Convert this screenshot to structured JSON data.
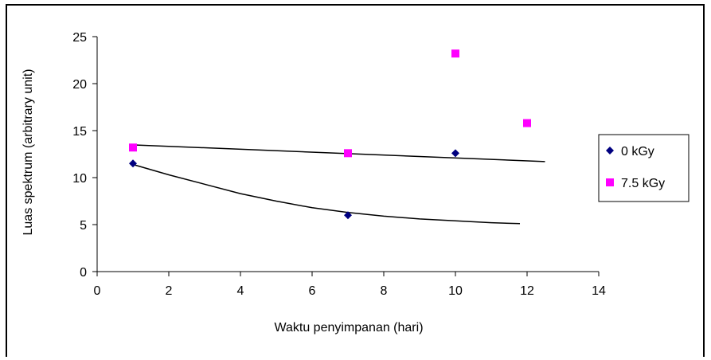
{
  "chart_data": {
    "type": "scatter",
    "title": "",
    "xlabel": "Waktu penyimpanan (hari)",
    "ylabel": "Luas spektrum (arbitrary unit)",
    "xlim": [
      0,
      14
    ],
    "ylim": [
      0,
      25
    ],
    "xticks": [
      0,
      2,
      4,
      6,
      8,
      10,
      12,
      14
    ],
    "yticks": [
      0,
      5,
      10,
      15,
      20,
      25
    ],
    "grid": false,
    "legend_position": "right",
    "series": [
      {
        "name": "0 kGy",
        "marker": "diamond",
        "color": "#000080",
        "points": [
          [
            1,
            11.5
          ],
          [
            7,
            6.0
          ],
          [
            10,
            12.6
          ]
        ],
        "trendline": {
          "type": "curve",
          "x": [
            1,
            2,
            3,
            4,
            5,
            6,
            7,
            8,
            9,
            10,
            11,
            11.8
          ],
          "y": [
            11.4,
            10.3,
            9.3,
            8.3,
            7.5,
            6.8,
            6.3,
            5.9,
            5.6,
            5.4,
            5.2,
            5.1
          ]
        }
      },
      {
        "name": "7.5 kGy",
        "marker": "square",
        "color": "#FF00FF",
        "points": [
          [
            1,
            13.2
          ],
          [
            7,
            12.6
          ],
          [
            10,
            23.2
          ],
          [
            12,
            15.8
          ]
        ],
        "trendline": {
          "type": "linear",
          "x": [
            0.9,
            12.5
          ],
          "y": [
            13.5,
            11.7
          ]
        }
      }
    ]
  }
}
